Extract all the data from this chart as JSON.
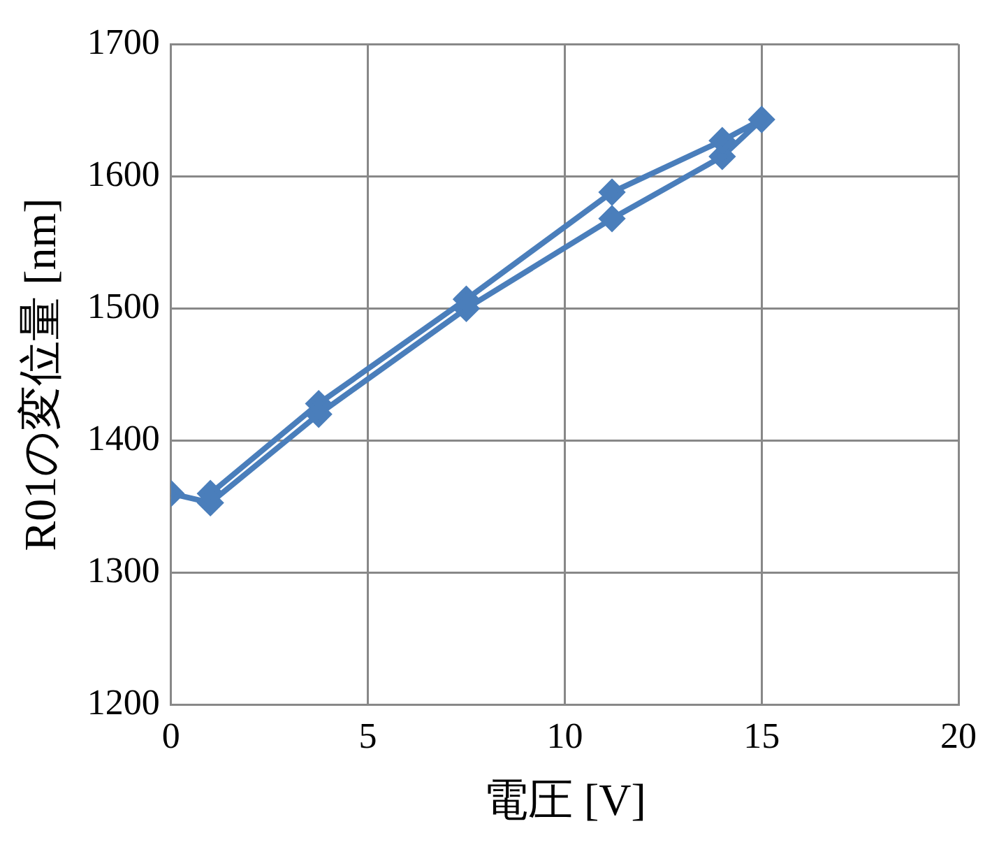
{
  "chart_data": {
    "type": "line",
    "xlabel": "電圧 [V]",
    "ylabel": "R01の変位量 [nm]",
    "series": [
      {
        "color": "#4a7ebb",
        "x": [
          0,
          1,
          3.75,
          7.5,
          11.2,
          14,
          15,
          14,
          11.2,
          7.5,
          3.75,
          1
        ],
        "values": [
          1360,
          1353,
          1420,
          1500,
          1568,
          1615,
          1643,
          1627,
          1588,
          1507,
          1428,
          1360
        ]
      }
    ],
    "xlim": [
      0,
      20
    ],
    "xticks": [
      0,
      5,
      10,
      15,
      20
    ],
    "ylim": [
      1200,
      1700
    ],
    "yticks": [
      1200,
      1300,
      1400,
      1500,
      1600,
      1700
    ],
    "grid": true,
    "legend": false,
    "marker": "diamond",
    "line_style": "solid"
  }
}
